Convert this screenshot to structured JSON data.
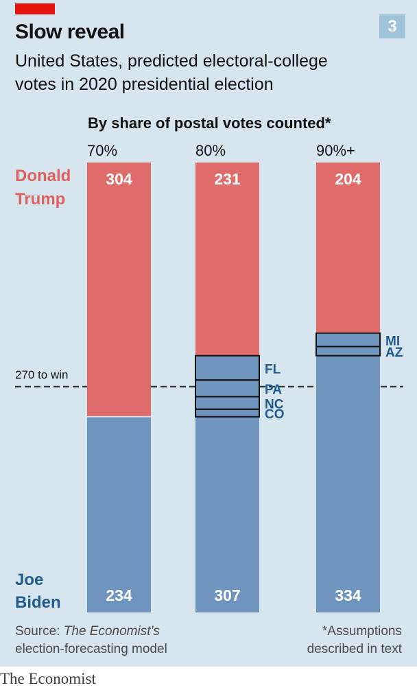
{
  "header": {
    "chart_number": "3",
    "title": "Slow reveal",
    "subtitle_line1": "United States, predicted electoral-college",
    "subtitle_line2": "votes in 2020 presidential election"
  },
  "colors": {
    "trump": "#e06b6b",
    "biden": "#6f95bf",
    "trump_label": "#e0605e",
    "biden_label": "#1f5a92",
    "state_label": "#1f5a92"
  },
  "chart_data": {
    "type": "bar",
    "stacked": true,
    "title": "By share of postal votes counted*",
    "categories": [
      "70%",
      "80%",
      "90%+"
    ],
    "series": [
      {
        "name": "Donald Trump",
        "values": [
          304,
          231,
          204
        ]
      },
      {
        "name": "Joe Biden",
        "values": [
          234,
          307,
          334
        ]
      }
    ],
    "total": 538,
    "threshold": {
      "value": 270,
      "label": "270 to win"
    },
    "swing_states": [
      {
        "category": "80%",
        "states": [
          {
            "name": "FL",
            "votes": 29
          },
          {
            "name": "PA",
            "votes": 20
          },
          {
            "name": "NC",
            "votes": 15
          },
          {
            "name": "CO",
            "votes": 9
          }
        ]
      },
      {
        "category": "90%+",
        "states": [
          {
            "name": "MI",
            "votes": 16
          },
          {
            "name": "AZ",
            "votes": 11
          }
        ]
      }
    ],
    "legend": {
      "trump_line1": "Donald",
      "trump_line2": "Trump",
      "biden_line1": "Joe",
      "biden_line2": "Biden"
    },
    "source_prefix": "Source: ",
    "source_italic": "The Economist’s",
    "source_line2": "election-forecasting model",
    "note_line1": "*Assumptions",
    "note_line2": "described in text"
  },
  "footer": {
    "brand": "The Economist"
  }
}
